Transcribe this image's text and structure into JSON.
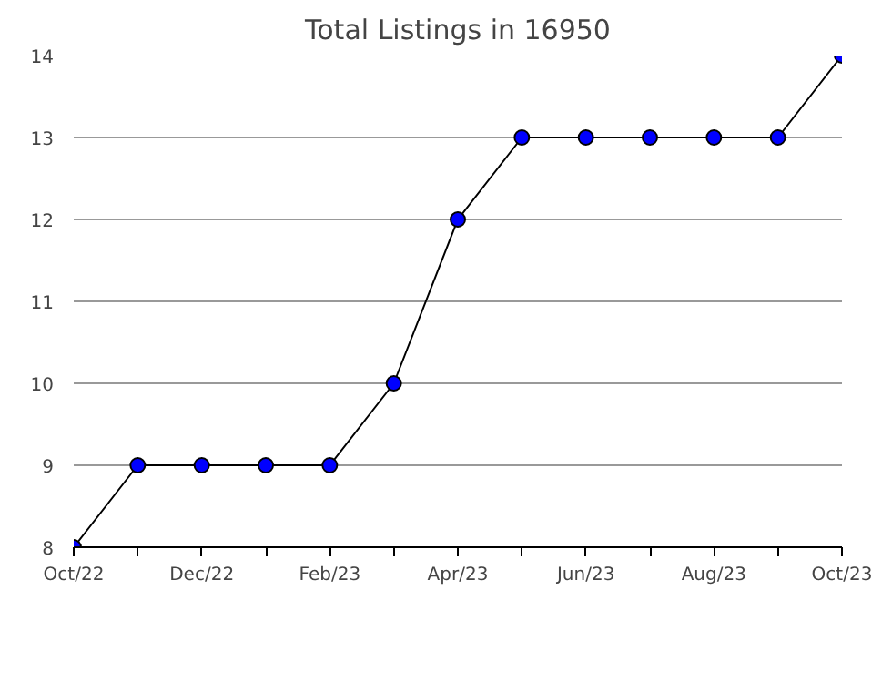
{
  "chart_data": {
    "type": "line",
    "title": "Total Listings in 16950",
    "categories": [
      "Oct/22",
      null,
      "Dec/22",
      null,
      "Feb/23",
      null,
      "Apr/23",
      null,
      "Jun/23",
      null,
      "Aug/23",
      null,
      "Oct/23"
    ],
    "series": [
      {
        "color": "#0000ff",
        "values": [
          8,
          9,
          9,
          9,
          9,
          10,
          12,
          13,
          13,
          13,
          13,
          13,
          14
        ]
      }
    ],
    "ylim": [
      8,
      14
    ],
    "yticks": [
      8,
      9,
      10,
      11,
      12,
      13,
      14
    ],
    "grid": "y",
    "marker": "circle",
    "line_style": "solid"
  }
}
